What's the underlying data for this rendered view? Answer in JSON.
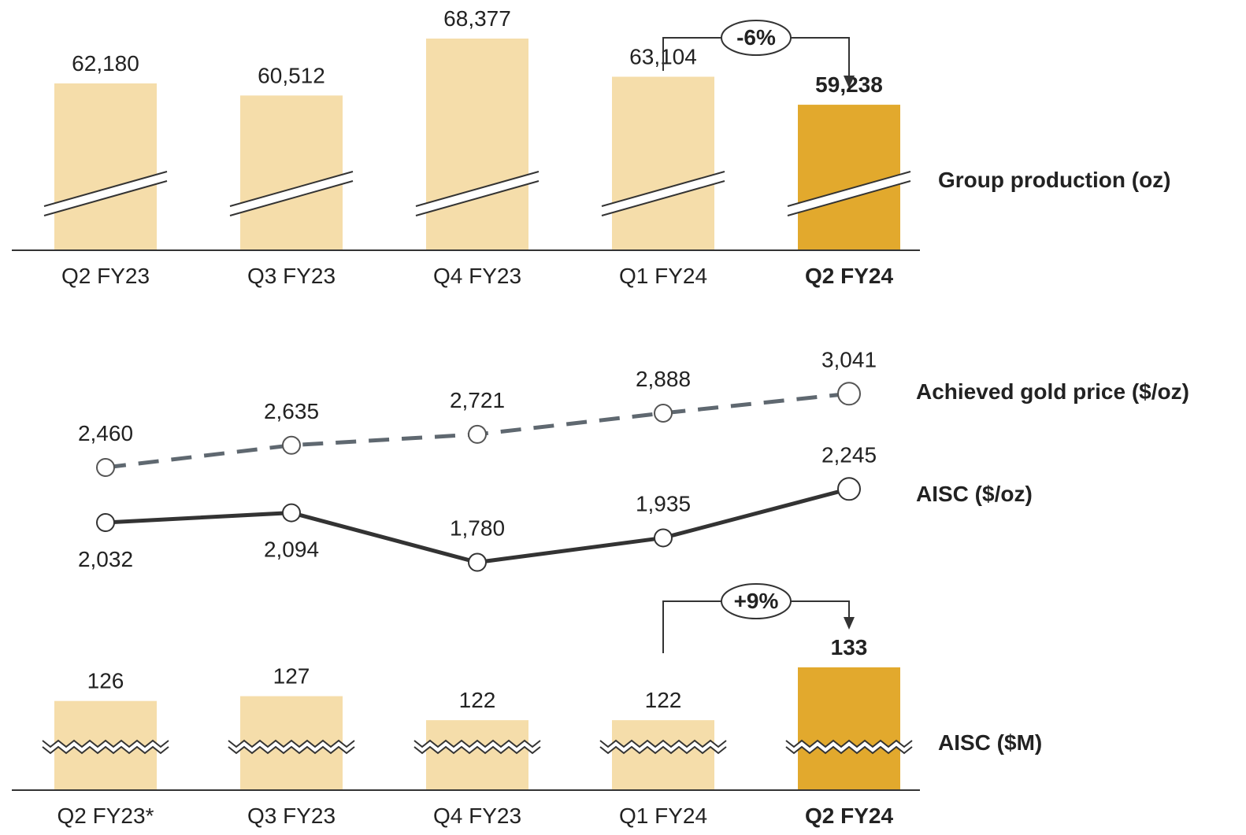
{
  "colors": {
    "bar_light": "#F5DDAA",
    "bar_highlight": "#E2A92D",
    "price_line": "#5F6870",
    "aisc_line": "#333333",
    "axis": "#333333",
    "text": "#222222"
  },
  "chart_data": [
    {
      "type": "bar",
      "title": "Group production (oz)",
      "categories": [
        "Q2 FY23",
        "Q3 FY23",
        "Q4 FY23",
        "Q1 FY24",
        "Q2 FY24"
      ],
      "values": [
        62180,
        60512,
        68377,
        63104,
        59238
      ],
      "value_labels": [
        "62,180",
        "60,512",
        "68,377",
        "63,104",
        "59,238"
      ],
      "highlight_index": 4,
      "axis_break": "diagonal",
      "ylim": [
        56000,
        69000
      ],
      "change_callout": {
        "from_index": 3,
        "to_index": 4,
        "label": "-6%"
      }
    },
    {
      "type": "line",
      "categories": [
        "Q2 FY23",
        "Q3 FY23",
        "Q4 FY23",
        "Q1 FY24",
        "Q2 FY24"
      ],
      "series": [
        {
          "name": "Achieved gold price ($/oz)",
          "style": "dashed",
          "values": [
            2460,
            2635,
            2721,
            2888,
            3041
          ],
          "value_labels": [
            "2,460",
            "2,635",
            "2,721",
            "2,888",
            "3,041"
          ]
        },
        {
          "name": "AISC ($/oz)",
          "style": "solid",
          "values": [
            2032,
            2094,
            1780,
            1935,
            2245
          ],
          "value_labels": [
            "2,032",
            "2,094",
            "1,780",
            "1,935",
            "2,245"
          ]
        }
      ]
    },
    {
      "type": "bar",
      "title": "AISC ($M)",
      "categories": [
        "Q2 FY23*",
        "Q3 FY23",
        "Q4 FY23",
        "Q1 FY24",
        "Q2 FY24"
      ],
      "values": [
        126,
        127,
        122,
        122,
        133
      ],
      "value_labels": [
        "126",
        "127",
        "122",
        "122",
        "133"
      ],
      "highlight_index": 4,
      "axis_break": "zigzag",
      "ylim": [
        108,
        134
      ],
      "change_callout": {
        "from_index": 3,
        "to_index": 4,
        "label": "+9%"
      }
    }
  ]
}
